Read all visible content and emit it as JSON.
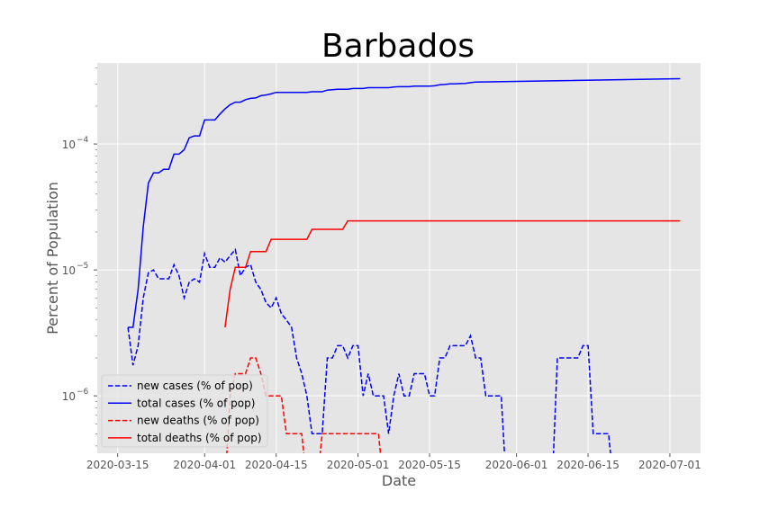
{
  "chart_data": {
    "type": "line",
    "title": "Barbados",
    "xlabel": "Date",
    "ylabel": "Percent of Population",
    "yscale": "log",
    "grid": true,
    "legend_position": "lower-left",
    "xlim": [
      "2020-03-11",
      "2020-07-07"
    ],
    "ylim": [
      3.5e-07,
      0.00044
    ],
    "x_ticks": [
      "2020-03-15",
      "2020-04-01",
      "2020-04-15",
      "2020-05-01",
      "2020-05-15",
      "2020-06-01",
      "2020-06-15",
      "2020-07-01"
    ],
    "y_ticks": [
      {
        "value": 1e-06,
        "base": "10",
        "exp": "−6"
      },
      {
        "value": 1e-05,
        "base": "10",
        "exp": "−5"
      },
      {
        "value": 0.0001,
        "base": "10",
        "exp": "−4"
      }
    ],
    "series": [
      {
        "name": "new cases (% of pop)",
        "color": "#0000ff",
        "dash": "dashed",
        "points": [
          [
            "2020-03-17",
            3.5e-06
          ],
          [
            "2020-03-18",
            1.75e-06
          ],
          [
            "2020-03-19",
            2.5e-06
          ],
          [
            "2020-03-20",
            6e-06
          ],
          [
            "2020-03-21",
            9.5e-06
          ],
          [
            "2020-03-22",
            1e-05
          ],
          [
            "2020-03-23",
            8.5e-06
          ],
          [
            "2020-03-24",
            8.5e-06
          ],
          [
            "2020-03-25",
            8.5e-06
          ],
          [
            "2020-03-26",
            1.1e-05
          ],
          [
            "2020-03-27",
            9e-06
          ],
          [
            "2020-03-28",
            6e-06
          ],
          [
            "2020-03-29",
            8e-06
          ],
          [
            "2020-03-30",
            8.5e-06
          ],
          [
            "2020-03-31",
            8e-06
          ],
          [
            "2020-04-01",
            1.35e-05
          ],
          [
            "2020-04-02",
            1.05e-05
          ],
          [
            "2020-04-03",
            1.05e-05
          ],
          [
            "2020-04-04",
            1.25e-05
          ],
          [
            "2020-04-05",
            1.15e-05
          ],
          [
            "2020-04-06",
            1.3e-05
          ],
          [
            "2020-04-07",
            1.45e-05
          ],
          [
            "2020-04-08",
            9e-06
          ],
          [
            "2020-04-09",
            1.05e-05
          ],
          [
            "2020-04-10",
            1.1e-05
          ],
          [
            "2020-04-11",
            8e-06
          ],
          [
            "2020-04-12",
            7e-06
          ],
          [
            "2020-04-13",
            5.5e-06
          ],
          [
            "2020-04-14",
            5e-06
          ],
          [
            "2020-04-15",
            6e-06
          ],
          [
            "2020-04-16",
            4.5e-06
          ],
          [
            "2020-04-17",
            4e-06
          ],
          [
            "2020-04-18",
            3.5e-06
          ],
          [
            "2020-04-19",
            2e-06
          ],
          [
            "2020-04-20",
            1.5e-06
          ],
          [
            "2020-04-21",
            1e-06
          ],
          [
            "2020-04-22",
            5e-07
          ],
          [
            "2020-04-23",
            5e-07
          ],
          [
            "2020-04-24",
            5e-07
          ],
          [
            "2020-04-25",
            2e-06
          ],
          [
            "2020-04-26",
            2e-06
          ],
          [
            "2020-04-27",
            2.5e-06
          ],
          [
            "2020-04-28",
            2.5e-06
          ],
          [
            "2020-04-29",
            2e-06
          ],
          [
            "2020-04-30",
            2.5e-06
          ],
          [
            "2020-05-01",
            2.5e-06
          ],
          [
            "2020-05-02",
            1e-06
          ],
          [
            "2020-05-03",
            1.5e-06
          ],
          [
            "2020-05-04",
            1e-06
          ],
          [
            "2020-05-05",
            1e-06
          ],
          [
            "2020-05-06",
            1e-06
          ],
          [
            "2020-05-07",
            5e-07
          ],
          [
            "2020-05-08",
            1e-06
          ],
          [
            "2020-05-09",
            1.5e-06
          ],
          [
            "2020-05-10",
            1e-06
          ],
          [
            "2020-05-11",
            1e-06
          ],
          [
            "2020-05-12",
            1.5e-06
          ],
          [
            "2020-05-13",
            1.5e-06
          ],
          [
            "2020-05-14",
            1.5e-06
          ],
          [
            "2020-05-15",
            1e-06
          ],
          [
            "2020-05-16",
            1e-06
          ],
          [
            "2020-05-17",
            2e-06
          ],
          [
            "2020-05-18",
            2e-06
          ],
          [
            "2020-05-19",
            2.5e-06
          ],
          [
            "2020-05-20",
            2.5e-06
          ],
          [
            "2020-05-21",
            2.5e-06
          ],
          [
            "2020-05-22",
            2.5e-06
          ],
          [
            "2020-05-23",
            3e-06
          ],
          [
            "2020-05-24",
            2e-06
          ],
          [
            "2020-05-25",
            2e-06
          ],
          [
            "2020-05-26",
            1e-06
          ],
          [
            "2020-05-27",
            1e-06
          ],
          [
            "2020-05-28",
            1e-06
          ],
          [
            "2020-05-29",
            1e-06
          ],
          [
            "2020-05-30",
            2e-07
          ],
          null,
          [
            "2020-06-08",
            2e-07
          ],
          [
            "2020-06-09",
            2e-06
          ],
          [
            "2020-06-10",
            2e-06
          ],
          [
            "2020-06-11",
            2e-06
          ],
          [
            "2020-06-12",
            2e-06
          ],
          [
            "2020-06-13",
            2e-06
          ],
          [
            "2020-06-14",
            2.5e-06
          ],
          [
            "2020-06-15",
            2.5e-06
          ],
          [
            "2020-06-16",
            5e-07
          ],
          [
            "2020-06-17",
            5e-07
          ],
          [
            "2020-06-18",
            5e-07
          ],
          [
            "2020-06-19",
            5e-07
          ],
          [
            "2020-06-20",
            2e-07
          ]
        ]
      },
      {
        "name": "total cases (% of pop)",
        "color": "#0000ff",
        "dash": "solid",
        "points": [
          [
            "2020-03-17",
            3.5e-06
          ],
          [
            "2020-03-18",
            3.5e-06
          ],
          [
            "2020-03-19",
            7e-06
          ],
          [
            "2020-03-20",
            2.2e-05
          ],
          [
            "2020-03-21",
            4.9e-05
          ],
          [
            "2020-03-22",
            5.9e-05
          ],
          [
            "2020-03-23",
            5.9e-05
          ],
          [
            "2020-03-24",
            6.3e-05
          ],
          [
            "2020-03-25",
            6.3e-05
          ],
          [
            "2020-03-26",
            8.3e-05
          ],
          [
            "2020-03-27",
            8.3e-05
          ],
          [
            "2020-03-28",
            9e-05
          ],
          [
            "2020-03-29",
            0.000112
          ],
          [
            "2020-03-30",
            0.000116
          ],
          [
            "2020-03-31",
            0.000116
          ],
          [
            "2020-04-01",
            0.000155
          ],
          [
            "2020-04-02",
            0.000155
          ],
          [
            "2020-04-03",
            0.000155
          ],
          [
            "2020-04-04",
            0.000173
          ],
          [
            "2020-04-05",
            0.00019
          ],
          [
            "2020-04-06",
            0.000205
          ],
          [
            "2020-04-07",
            0.000215
          ],
          [
            "2020-04-08",
            0.000215
          ],
          [
            "2020-04-09",
            0.000225
          ],
          [
            "2020-04-10",
            0.00023
          ],
          [
            "2020-04-11",
            0.000232
          ],
          [
            "2020-04-12",
            0.000242
          ],
          [
            "2020-04-13",
            0.000245
          ],
          [
            "2020-04-14",
            0.00025
          ],
          [
            "2020-04-15",
            0.000257
          ],
          [
            "2020-04-16",
            0.000257
          ],
          [
            "2020-04-17",
            0.000257
          ],
          [
            "2020-04-18",
            0.000257
          ],
          [
            "2020-04-19",
            0.000257
          ],
          [
            "2020-04-20",
            0.000257
          ],
          [
            "2020-04-21",
            0.000257
          ],
          [
            "2020-04-22",
            0.00026
          ],
          [
            "2020-04-23",
            0.00026
          ],
          [
            "2020-04-24",
            0.00026
          ],
          [
            "2020-04-25",
            0.000268
          ],
          [
            "2020-04-26",
            0.00027
          ],
          [
            "2020-04-27",
            0.000272
          ],
          [
            "2020-04-28",
            0.000272
          ],
          [
            "2020-04-29",
            0.000272
          ],
          [
            "2020-04-30",
            0.000276
          ],
          [
            "2020-05-01",
            0.000276
          ],
          [
            "2020-05-02",
            0.000276
          ],
          [
            "2020-05-03",
            0.00028
          ],
          [
            "2020-05-04",
            0.00028
          ],
          [
            "2020-05-05",
            0.00028
          ],
          [
            "2020-05-06",
            0.00028
          ],
          [
            "2020-05-07",
            0.00028
          ],
          [
            "2020-05-08",
            0.000283
          ],
          [
            "2020-05-09",
            0.000285
          ],
          [
            "2020-05-10",
            0.000285
          ],
          [
            "2020-05-11",
            0.000285
          ],
          [
            "2020-05-12",
            0.000288
          ],
          [
            "2020-05-13",
            0.000288
          ],
          [
            "2020-05-14",
            0.000288
          ],
          [
            "2020-05-15",
            0.000288
          ],
          [
            "2020-05-16",
            0.00029
          ],
          [
            "2020-05-17",
            0.000295
          ],
          [
            "2020-05-18",
            0.000297
          ],
          [
            "2020-05-19",
            0.0003
          ],
          [
            "2020-05-20",
            0.0003
          ],
          [
            "2020-05-21",
            0.000302
          ],
          [
            "2020-05-22",
            0.000303
          ],
          [
            "2020-05-23",
            0.000307
          ],
          [
            "2020-05-24",
            0.00031
          ],
          [
            "2020-07-03",
            0.00033
          ]
        ]
      },
      {
        "name": "new deaths (% of pop)",
        "color": "#ff0000",
        "dash": "dashed",
        "points": [
          [
            "2020-04-05",
            2e-07
          ],
          [
            "2020-04-06",
            1e-06
          ],
          [
            "2020-04-07",
            1.5e-06
          ],
          [
            "2020-04-08",
            1.5e-06
          ],
          [
            "2020-04-09",
            1.5e-06
          ],
          [
            "2020-04-10",
            2e-06
          ],
          [
            "2020-04-11",
            2e-06
          ],
          [
            "2020-04-12",
            1.5e-06
          ],
          [
            "2020-04-13",
            1e-06
          ],
          [
            "2020-04-14",
            1e-06
          ],
          [
            "2020-04-15",
            1e-06
          ],
          [
            "2020-04-16",
            1e-06
          ],
          [
            "2020-04-17",
            5e-07
          ],
          [
            "2020-04-18",
            5e-07
          ],
          [
            "2020-04-19",
            5e-07
          ],
          [
            "2020-04-20",
            5e-07
          ],
          [
            "2020-04-21",
            2e-07
          ],
          null,
          [
            "2020-04-23",
            2e-07
          ],
          [
            "2020-04-24",
            5e-07
          ],
          [
            "2020-04-25",
            5e-07
          ],
          [
            "2020-04-26",
            5e-07
          ],
          [
            "2020-04-27",
            5e-07
          ],
          [
            "2020-04-28",
            5e-07
          ],
          [
            "2020-04-29",
            5e-07
          ],
          [
            "2020-04-30",
            5e-07
          ],
          [
            "2020-05-01",
            5e-07
          ],
          [
            "2020-05-02",
            5e-07
          ],
          [
            "2020-05-03",
            5e-07
          ],
          [
            "2020-05-04",
            5e-07
          ],
          [
            "2020-05-05",
            5e-07
          ],
          [
            "2020-05-06",
            2e-07
          ]
        ]
      },
      {
        "name": "total deaths (% of pop)",
        "color": "#ff0000",
        "dash": "solid",
        "points": [
          [
            "2020-04-05",
            3.5e-06
          ],
          [
            "2020-04-06",
            7e-06
          ],
          [
            "2020-04-07",
            1.05e-05
          ],
          [
            "2020-04-08",
            1.05e-05
          ],
          [
            "2020-04-09",
            1.05e-05
          ],
          [
            "2020-04-10",
            1.4e-05
          ],
          [
            "2020-04-11",
            1.4e-05
          ],
          [
            "2020-04-12",
            1.4e-05
          ],
          [
            "2020-04-13",
            1.4e-05
          ],
          [
            "2020-04-14",
            1.75e-05
          ],
          [
            "2020-04-21",
            1.75e-05
          ],
          [
            "2020-04-22",
            2.1e-05
          ],
          [
            "2020-04-28",
            2.1e-05
          ],
          [
            "2020-04-29",
            2.45e-05
          ],
          [
            "2020-07-03",
            2.45e-05
          ]
        ]
      }
    ]
  }
}
